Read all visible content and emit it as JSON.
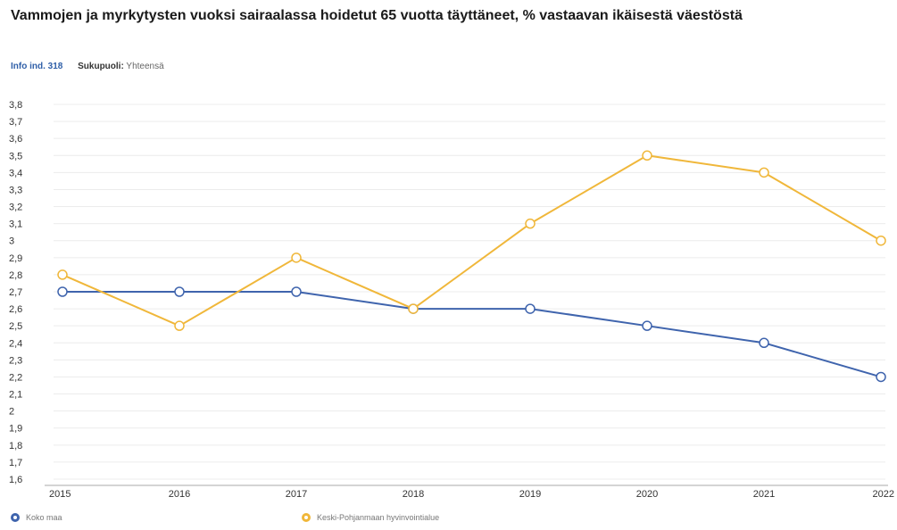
{
  "chart_data": {
    "type": "line",
    "title": "Vammojen ja myrkytysten vuoksi sairaalassa hoidetut 65 vuotta täyttäneet, % vastaavan ikäisestä väestöstä",
    "info_label": "Info ind. 318",
    "filter": {
      "label": "Sukupuoli:",
      "value": "Yhteensä"
    },
    "categories": [
      "2015",
      "2016",
      "2017",
      "2018",
      "2019",
      "2020",
      "2021",
      "2022"
    ],
    "ylim": [
      1.6,
      3.8
    ],
    "yticks": [
      3.8,
      3.7,
      3.6,
      3.5,
      3.4,
      3.3,
      3.2,
      3.1,
      3.0,
      2.9,
      2.8,
      2.7,
      2.6,
      2.5,
      2.4,
      2.3,
      2.2,
      2.1,
      2.0,
      1.9,
      1.8,
      1.7,
      1.6
    ],
    "ytick_labels": [
      "3,8",
      "3,7",
      "3,6",
      "3,5",
      "3,4",
      "3,3",
      "3,2",
      "3,1",
      "3",
      "2,9",
      "2,8",
      "2,7",
      "2,6",
      "2,5",
      "2,4",
      "2,3",
      "2,2",
      "2,1",
      "2",
      "1,9",
      "1,8",
      "1,7",
      "1,6"
    ],
    "grid": true,
    "legend_position": "bottom-left",
    "series": [
      {
        "name": "Koko maa",
        "color": "#3f64ad",
        "values": [
          2.7,
          2.7,
          2.7,
          2.6,
          2.6,
          2.5,
          2.4,
          2.2
        ]
      },
      {
        "name": "Keski-Pohjanmaan hyvinvointialue",
        "color": "#f0b73a",
        "values": [
          2.8,
          2.5,
          2.9,
          2.6,
          3.1,
          3.5,
          3.4,
          3.0
        ]
      }
    ]
  }
}
